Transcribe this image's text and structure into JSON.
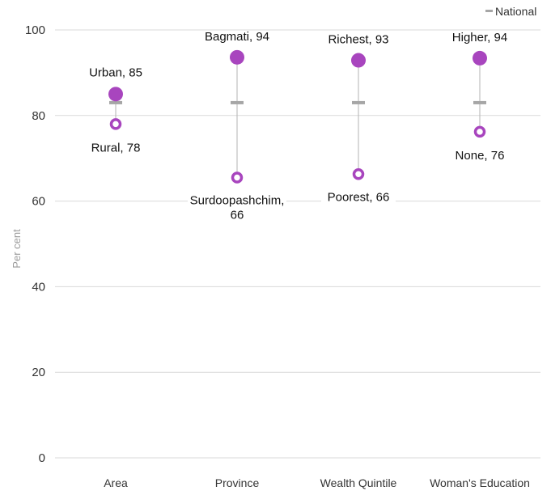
{
  "chart_data": {
    "type": "dot-range",
    "ylabel": "Per cent",
    "ylim": [
      0,
      100
    ],
    "yticks": [
      0,
      20,
      40,
      60,
      80,
      100
    ],
    "categories": [
      "Area",
      "Province",
      "Wealth Quintile",
      "Woman's Education"
    ],
    "national": 83,
    "legend": {
      "label": "National",
      "position": "top-right"
    },
    "high": [
      {
        "label": "Urban, 85",
        "value": 85
      },
      {
        "label": "Bagmati, 94",
        "value": 93.6
      },
      {
        "label": "Richest, 93",
        "value": 92.9
      },
      {
        "label": "Higher, 94",
        "value": 93.4
      }
    ],
    "low": [
      {
        "label": "Rural, 78",
        "value": 78
      },
      {
        "label": "Surdoopashchim,",
        "label2": "66",
        "value": 65.5
      },
      {
        "label": "Poorest, 66",
        "value": 66.3
      },
      {
        "label": "None, 76",
        "value": 76.2
      }
    ],
    "colors": {
      "dot": "#a845be",
      "national": "#a6a6a6",
      "range": "#b3b3b3",
      "grid": "#d9d9d9"
    }
  }
}
